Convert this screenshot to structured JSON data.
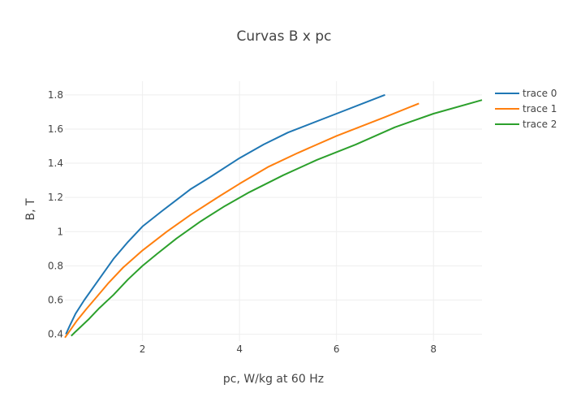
{
  "chart_data": {
    "type": "line",
    "title": "Curvas B x pc",
    "xlabel": "pc, W/kg at 60 Hz",
    "ylabel": "B, T",
    "xlim": [
      0.4,
      9.0
    ],
    "ylim": [
      0.36,
      1.88
    ],
    "xticks": [
      2,
      4,
      6,
      8
    ],
    "xtick_labels": [
      "2",
      "4",
      "6",
      "8"
    ],
    "yticks": [
      0.4,
      0.6,
      0.8,
      1.0,
      1.2,
      1.4,
      1.6,
      1.8
    ],
    "ytick_labels": [
      "0.4",
      "0.6",
      "0.8",
      "1",
      "1.2",
      "1.4",
      "1.6",
      "1.8"
    ],
    "grid": true,
    "legend": "top-right",
    "series": [
      {
        "name": "trace 0",
        "color": "#1f77b4",
        "x": [
          0.42,
          0.5,
          0.62,
          0.8,
          1.0,
          1.2,
          1.4,
          1.7,
          2.0,
          2.4,
          3.0,
          3.4,
          4.0,
          4.5,
          5.0,
          6.0,
          7.0
        ],
        "y": [
          0.4,
          0.45,
          0.52,
          0.6,
          0.68,
          0.76,
          0.84,
          0.94,
          1.03,
          1.12,
          1.25,
          1.32,
          1.43,
          1.51,
          1.58,
          1.69,
          1.8
        ]
      },
      {
        "name": "trace 1",
        "color": "#ff7f0e",
        "x": [
          0.4,
          0.5,
          0.65,
          0.85,
          1.0,
          1.3,
          1.6,
          2.0,
          2.5,
          3.0,
          3.6,
          4.0,
          4.6,
          5.2,
          6.0,
          7.0,
          7.7
        ],
        "y": [
          0.38,
          0.42,
          0.48,
          0.55,
          0.6,
          0.7,
          0.79,
          0.89,
          1.0,
          1.1,
          1.21,
          1.28,
          1.38,
          1.46,
          1.56,
          1.67,
          1.75
        ]
      },
      {
        "name": "trace 2",
        "color": "#2ca02c",
        "x": [
          0.53,
          0.6,
          0.75,
          0.9,
          1.1,
          1.4,
          1.7,
          2.0,
          2.3,
          2.7,
          3.2,
          3.7,
          4.2,
          4.9,
          5.6,
          6.4,
          7.2,
          8.0,
          9.0
        ],
        "y": [
          0.39,
          0.41,
          0.45,
          0.49,
          0.55,
          0.63,
          0.72,
          0.8,
          0.87,
          0.96,
          1.06,
          1.15,
          1.23,
          1.33,
          1.42,
          1.51,
          1.61,
          1.69,
          1.77
        ]
      }
    ]
  }
}
